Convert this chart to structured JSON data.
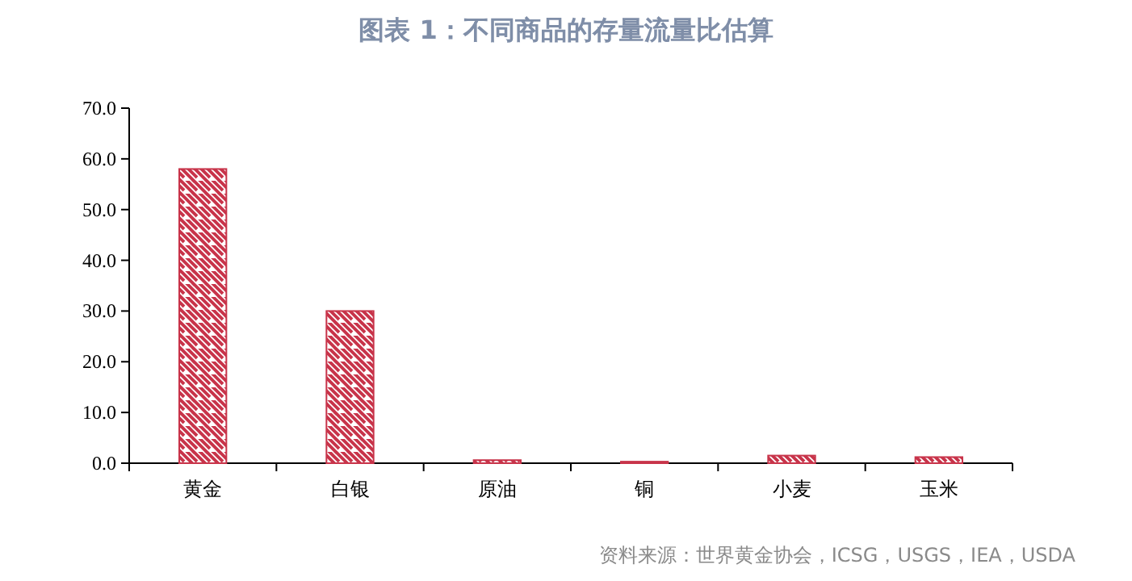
{
  "chart_data": {
    "type": "bar",
    "title": "图表 1：不同商品的存量流量比估算",
    "categories": [
      "黄金",
      "白银",
      "原油",
      "铜",
      "小麦",
      "玉米"
    ],
    "values": [
      58,
      30,
      0.6,
      0.3,
      1.5,
      1.2
    ],
    "color": "#c8344a",
    "ylim": [
      0,
      70
    ],
    "yticks": [
      {
        "value": 0,
        "label": "0.0"
      },
      {
        "value": 10,
        "label": "10.0"
      },
      {
        "value": 20,
        "label": "20.0"
      },
      {
        "value": 30,
        "label": "30.0"
      },
      {
        "value": 40,
        "label": "40.0"
      },
      {
        "value": 50,
        "label": "50.0"
      },
      {
        "value": 60,
        "label": "60.0"
      },
      {
        "value": 70,
        "label": "70.0"
      }
    ],
    "annotations": [
      "资料来源：世界黄金协会，ICSG，USGS，IEA，USDA"
    ]
  }
}
